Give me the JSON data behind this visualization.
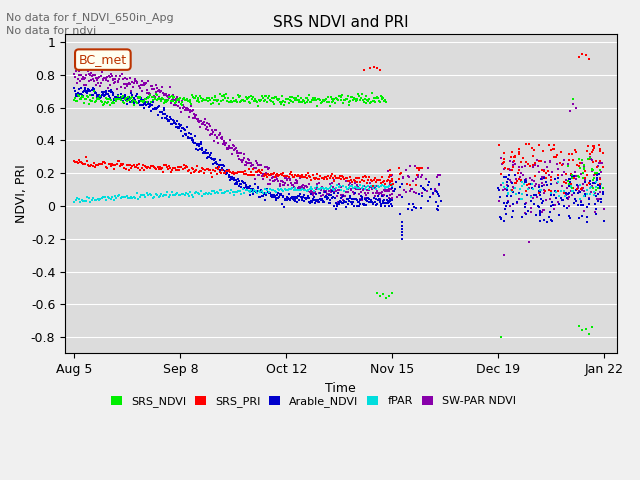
{
  "title": "SRS NDVI and PRI",
  "xlabel": "Time",
  "ylabel": "NDVI, PRI",
  "annotations": [
    "No data for f_NDVI_650in_Apg",
    "No data for ndvi"
  ],
  "legend_label": "BC_met",
  "ylim": [
    -0.9,
    1.1
  ],
  "yticks": [
    1.0,
    0.8,
    0.6,
    0.4,
    0.2,
    0.0,
    -0.2,
    -0.4,
    -0.6,
    -0.8
  ],
  "xtick_labels": [
    "Aug 5",
    "Sep 8",
    "Oct 12",
    "Nov 15",
    "Dec 19",
    "Jan 22"
  ],
  "xtick_positions": [
    0,
    34,
    68,
    102,
    136,
    170
  ],
  "colors": {
    "SRS_NDVI": "#00ee00",
    "SRS_PRI": "#ff0000",
    "Arable_NDVI": "#0000cc",
    "fPAR": "#00dddd",
    "SW_PAR_NDVI": "#8800aa"
  },
  "fig_bg": "#f0f0f0",
  "plot_bg": "#dcdcdc",
  "grid_color": "#ffffff"
}
